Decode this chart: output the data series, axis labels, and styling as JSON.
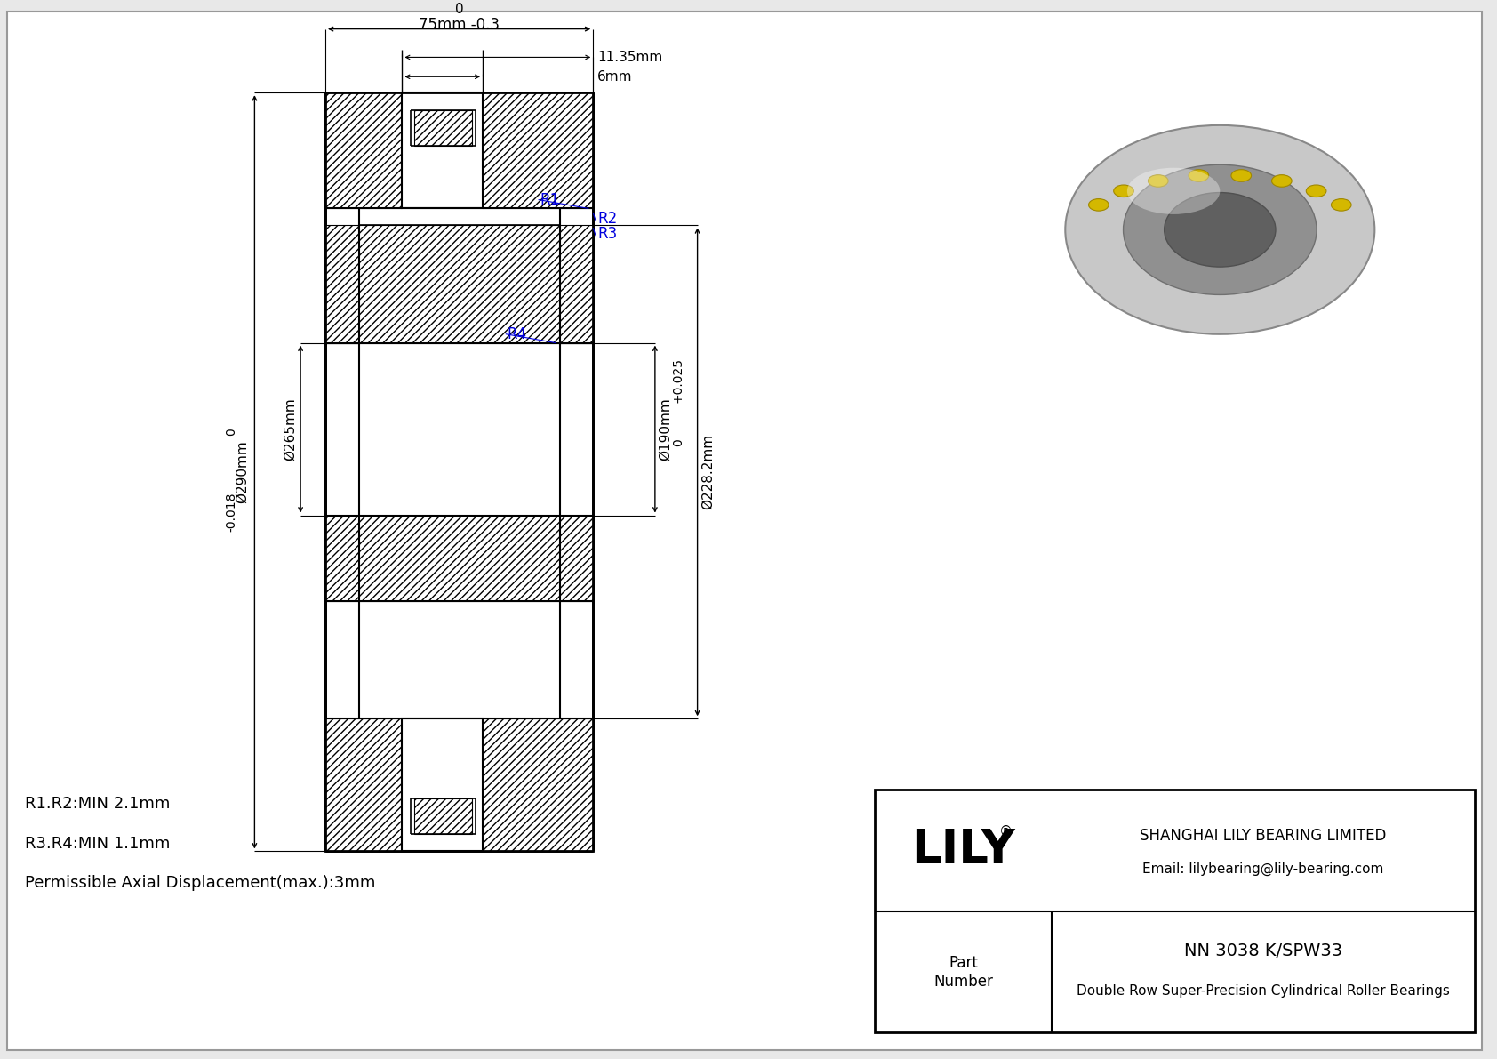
{
  "bg_color": "#e8e8e8",
  "title": "NN 3038 K/SPW33",
  "subtitle": "Double Row Super-Precision Cylindrical Roller Bearings",
  "company": "SHANGHAI LILY BEARING LIMITED",
  "email": "Email: lilybearing@lily-bearing.com",
  "part_label": "Part\nNumber",
  "lily_brand": "LILY",
  "dim_width_val": "75mm",
  "dim_width_tol_upper": "0",
  "dim_width_tol_lower": "-0.3",
  "dim_small1": "11.35mm",
  "dim_small2": "6mm",
  "dim_OD_val": "Ø290mm",
  "dim_OD_tol_upper": "0",
  "dim_OD_tol_lower": "-0.018",
  "dim_shoulder_val": "Ø265mm",
  "dim_ID_val": "Ø190mm",
  "dim_ID_tol_upper": "+0.025",
  "dim_ID_tol_lower": "0",
  "dim_mid_val": "Ø228.2mm",
  "r_labels": [
    "R1",
    "R2",
    "R3",
    "R4"
  ],
  "r_color": "#0000dd",
  "note1": "R1.R2:MIN 2.1mm",
  "note2": "R3.R4:MIN 1.1mm",
  "note3": "Permissible Axial Displacement(max.):3mm",
  "line_color": "#000000",
  "font_size_dim": 11,
  "font_size_note": 13,
  "font_size_tb_main": 14,
  "font_size_tb_body": 11,
  "font_size_lily": 38
}
